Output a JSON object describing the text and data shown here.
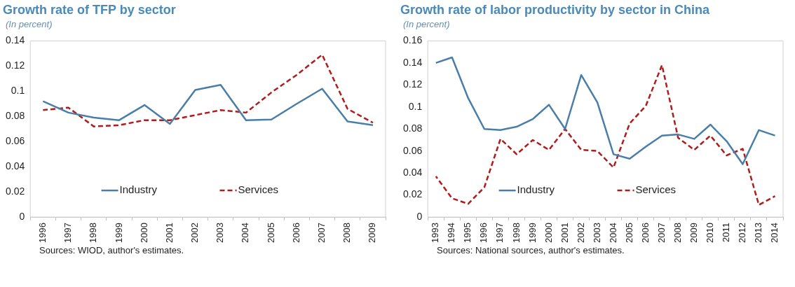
{
  "chart_data": [
    {
      "type": "line",
      "title": "Growth rate of TFP by sector",
      "subtitle": "(In percent)",
      "annotations": [
        "Sources: WIOD, author's estimates."
      ],
      "categories": [
        "1996",
        "1997",
        "1998",
        "1999",
        "2000",
        "2001",
        "2002",
        "2003",
        "2004",
        "2005",
        "2006",
        "2007",
        "2008",
        "2009"
      ],
      "series": [
        {
          "name": "Industry",
          "color": "#4a7ea8",
          "line_style": "solid",
          "values": [
            0.092,
            0.083,
            0.079,
            0.077,
            0.089,
            0.074,
            0.101,
            0.105,
            0.077,
            0.0775,
            0.09,
            0.102,
            0.076,
            0.073
          ]
        },
        {
          "name": "Services",
          "color": "#b01c1c",
          "line_style": "dashed",
          "values": [
            0.085,
            0.087,
            0.072,
            0.073,
            0.077,
            0.077,
            0.081,
            0.085,
            0.083,
            0.099,
            0.113,
            0.129,
            0.086,
            0.075
          ]
        }
      ],
      "ylim": [
        0,
        0.14
      ],
      "yticks": [
        0,
        0.02,
        0.04,
        0.06,
        0.08,
        0.1,
        0.12,
        0.14
      ],
      "grid": false,
      "legend": "bottom",
      "marker": "none"
    },
    {
      "type": "line",
      "title": "Growth rate of labor productivity by sector in China",
      "subtitle": "(In percent)",
      "annotations": [
        "Sources: National sources, author's estimates."
      ],
      "categories": [
        "1993",
        "1994",
        "1995",
        "1996",
        "1997",
        "1998",
        "1999",
        "2000",
        "2001",
        "2002",
        "2003",
        "2004",
        "2005",
        "2006",
        "2007",
        "2008",
        "2009",
        "2010",
        "2011",
        "2012",
        "2013",
        "2014"
      ],
      "series": [
        {
          "name": "Industry",
          "color": "#4a7ea8",
          "line_style": "solid",
          "values": [
            0.14,
            0.145,
            0.108,
            0.08,
            0.079,
            0.082,
            0.089,
            0.102,
            0.08,
            0.129,
            0.104,
            0.057,
            0.053,
            0.064,
            0.074,
            0.075,
            0.071,
            0.084,
            0.069,
            0.048,
            0.079,
            0.074
          ]
        },
        {
          "name": "Services",
          "color": "#b01c1c",
          "line_style": "dashed",
          "values": [
            0.037,
            0.017,
            0.012,
            0.027,
            0.071,
            0.057,
            0.07,
            0.061,
            0.08,
            0.061,
            0.06,
            0.045,
            0.085,
            0.101,
            0.138,
            0.072,
            0.061,
            0.074,
            0.056,
            0.062,
            0.011,
            0.019
          ]
        }
      ],
      "ylim": [
        0,
        0.16
      ],
      "yticks": [
        0,
        0.02,
        0.04,
        0.06,
        0.08,
        0.1,
        0.12,
        0.14,
        0.16
      ],
      "grid": false,
      "legend": "bottom",
      "marker": "none"
    }
  ]
}
